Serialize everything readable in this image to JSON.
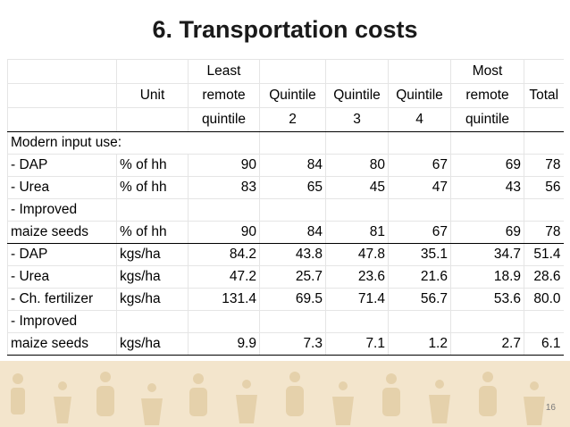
{
  "slide": {
    "title": "6. Transportation costs",
    "page_number": "16"
  },
  "table": {
    "header": {
      "unit": "Unit",
      "col1": [
        "Least",
        "remote",
        "quintile"
      ],
      "col2": [
        "",
        "Quintile",
        "2"
      ],
      "col3": [
        "",
        "Quintile",
        "3"
      ],
      "col4": [
        "",
        "Quintile",
        "4"
      ],
      "col5": [
        "Most",
        "remote",
        "quintile"
      ],
      "col6": [
        "",
        "Total",
        ""
      ]
    },
    "section_label": "Modern input use:",
    "rows": [
      {
        "label": "- DAP",
        "unit": "% of hh",
        "v": [
          "90",
          "84",
          "80",
          "67",
          "69",
          "78"
        ]
      },
      {
        "label": "- Urea",
        "unit": "% of hh",
        "v": [
          "83",
          "65",
          "45",
          "47",
          "43",
          "56"
        ]
      },
      {
        "label": "- Improved",
        "unit": "",
        "v": [
          "",
          "",
          "",
          "",
          "",
          ""
        ]
      },
      {
        "label": "maize seeds",
        "unit": "% of hh",
        "v": [
          "90",
          "84",
          "81",
          "67",
          "69",
          "78"
        ]
      },
      {
        "label": "- DAP",
        "unit": "kgs/ha",
        "v": [
          "84.2",
          "43.8",
          "47.8",
          "35.1",
          "34.7",
          "51.4"
        ]
      },
      {
        "label": "- Urea",
        "unit": "kgs/ha",
        "v": [
          "47.2",
          "25.7",
          "23.6",
          "21.6",
          "18.9",
          "28.6"
        ]
      },
      {
        "label": "- Ch. fertilizer",
        "unit": "kgs/ha",
        "v": [
          "131.4",
          "69.5",
          "71.4",
          "56.7",
          "53.6",
          "80.0"
        ]
      },
      {
        "label": "- Improved",
        "unit": "",
        "v": [
          "",
          "",
          "",
          "",
          "",
          ""
        ]
      },
      {
        "label": "maize seeds",
        "unit": "kgs/ha",
        "v": [
          "9.9",
          "7.3",
          "7.1",
          "1.2",
          "2.7",
          "6.1"
        ]
      }
    ]
  },
  "colors": {
    "footer_band": "#f3e5cc",
    "footer_pattern": "#e4cfa8"
  }
}
